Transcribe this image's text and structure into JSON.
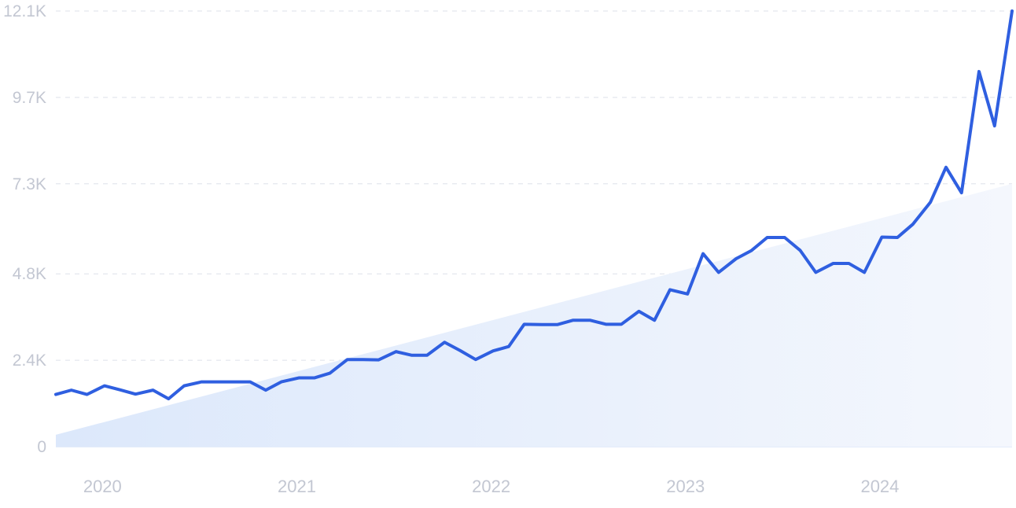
{
  "chart_data": {
    "type": "line",
    "title": "",
    "xlabel": "",
    "ylabel": "",
    "ylim": [
      0,
      12100
    ],
    "xlim": [
      2019.79,
      2024.71
    ],
    "grid": true,
    "legend": "none",
    "y_ticks": [
      {
        "value": 12100,
        "label": "12.1K"
      },
      {
        "value": 9700,
        "label": "9.7K"
      },
      {
        "value": 7300,
        "label": "7.3K"
      },
      {
        "value": 4800,
        "label": "4.8K"
      },
      {
        "value": 2400,
        "label": "2.4K"
      },
      {
        "value": 0,
        "label": "0"
      }
    ],
    "x_ticks": [
      {
        "value": 2020.03,
        "label": "2020"
      },
      {
        "value": 2021.03,
        "label": "2021"
      },
      {
        "value": 2022.03,
        "label": "2022"
      },
      {
        "value": 2023.03,
        "label": "2023"
      },
      {
        "value": 2024.03,
        "label": "2024"
      }
    ],
    "colors": {
      "line": "#2f5fe0",
      "trend_fill_start": "#dce8fb",
      "trend_fill_end": "#f4f7fd",
      "tick_text": "#c3c7d2",
      "grid": "#dde1ea"
    },
    "trend": {
      "x": [
        2019.79,
        2024.71
      ],
      "y": [
        330,
        7300
      ]
    },
    "series": [
      {
        "x": [
          2019.79,
          2019.87,
          2019.95,
          2020.04,
          2020.12,
          2020.2,
          2020.29,
          2020.37,
          2020.45,
          2020.54,
          2020.62,
          2020.7,
          2020.79,
          2020.87,
          2020.95,
          2021.04,
          2021.12,
          2021.2,
          2021.29,
          2021.37,
          2021.45,
          2021.54,
          2021.62,
          2021.7,
          2021.79,
          2021.87,
          2021.95,
          2022.04,
          2022.12,
          2022.2,
          2022.29,
          2022.37,
          2022.45,
          2022.54,
          2022.62,
          2022.7,
          2022.79,
          2022.87,
          2022.95,
          2023.04,
          2023.12,
          2023.2,
          2023.29,
          2023.37,
          2023.45,
          2023.54,
          2023.62,
          2023.7,
          2023.79,
          2023.87,
          2023.95,
          2024.04,
          2024.12,
          2024.2,
          2024.29,
          2024.37,
          2024.45,
          2024.54,
          2024.62,
          2024.71
        ],
        "values": [
          1450,
          1570,
          1450,
          1690,
          1580,
          1460,
          1570,
          1330,
          1690,
          1800,
          1800,
          1800,
          1800,
          1570,
          1800,
          1910,
          1910,
          2040,
          2420,
          2420,
          2410,
          2640,
          2540,
          2540,
          2900,
          2670,
          2420,
          2660,
          2780,
          3400,
          3390,
          3390,
          3510,
          3510,
          3400,
          3400,
          3760,
          3510,
          4360,
          4240,
          5360,
          4840,
          5220,
          5450,
          5810,
          5810,
          5450,
          4840,
          5090,
          5090,
          4840,
          5820,
          5810,
          6180,
          6790,
          7760,
          7050,
          10420,
          8910,
          12100
        ]
      }
    ]
  }
}
